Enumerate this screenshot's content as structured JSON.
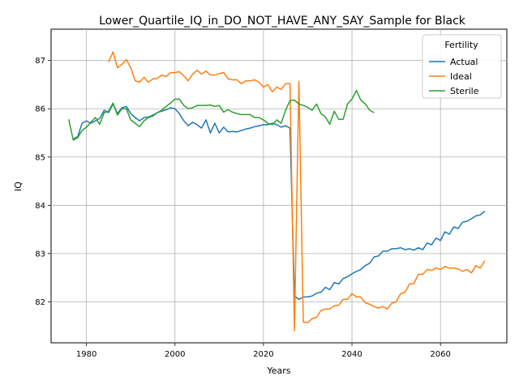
{
  "chart_data": {
    "type": "line",
    "title": "Lower_Quartile_IQ_in_DO_NOT_HAVE_ANY_SAY_Sample for Black",
    "xlabel": "Years",
    "ylabel": "IQ",
    "xlim": [
      1972,
      2075
    ],
    "ylim": [
      81.15,
      87.65
    ],
    "xticks": [
      1980,
      2000,
      2020,
      2040,
      2060
    ],
    "yticks": [
      82,
      83,
      84,
      85,
      86,
      87
    ],
    "grid": true,
    "legend": {
      "title": "Fertility",
      "position": "upper right"
    },
    "series": [
      {
        "name": "Actual",
        "color": "#1f77b4",
        "x": [
          1977,
          1978,
          1979,
          1980,
          1981,
          1982,
          1983,
          1984,
          1985,
          1986,
          1987,
          1988,
          1989,
          1990,
          1991,
          1992,
          1993,
          1994,
          1995,
          1996,
          1997,
          1998,
          1999,
          2000,
          2001,
          2002,
          2003,
          2004,
          2005,
          2006,
          2007,
          2008,
          2009,
          2010,
          2011,
          2012,
          2013,
          2014,
          2015,
          2016,
          2017,
          2018,
          2019,
          2020,
          2021,
          2022,
          2023,
          2024,
          2025,
          2026,
          2027,
          2028,
          2029,
          2030,
          2031,
          2032,
          2033,
          2034,
          2035,
          2036,
          2037,
          2038,
          2039,
          2040,
          2041,
          2042,
          2043,
          2044,
          2045,
          2046,
          2047,
          2048,
          2049,
          2050,
          2051,
          2052,
          2053,
          2054,
          2055,
          2056,
          2057,
          2058,
          2059,
          2060,
          2061,
          2062,
          2063,
          2064,
          2065,
          2066,
          2067,
          2068,
          2069,
          2070
        ],
        "y": [
          85.37,
          85.42,
          85.7,
          85.75,
          85.7,
          85.75,
          85.8,
          85.97,
          85.92,
          86.1,
          85.9,
          86.02,
          86.05,
          85.9,
          85.82,
          85.75,
          85.82,
          85.83,
          85.87,
          85.92,
          85.95,
          85.98,
          86.02,
          86.0,
          85.9,
          85.75,
          85.65,
          85.72,
          85.67,
          85.6,
          85.77,
          85.5,
          85.7,
          85.5,
          85.62,
          85.52,
          85.53,
          85.52,
          85.55,
          85.58,
          85.6,
          85.63,
          85.65,
          85.67,
          85.67,
          85.7,
          85.67,
          85.62,
          85.65,
          85.6,
          82.12,
          82.05,
          82.1,
          82.1,
          82.12,
          82.18,
          82.2,
          82.3,
          82.25,
          82.4,
          82.37,
          82.48,
          82.52,
          82.58,
          82.63,
          82.67,
          82.75,
          82.8,
          82.93,
          82.95,
          83.05,
          83.05,
          83.1,
          83.1,
          83.12,
          83.08,
          83.1,
          83.07,
          83.12,
          83.08,
          83.22,
          83.18,
          83.32,
          83.27,
          83.45,
          83.4,
          83.55,
          83.52,
          83.65,
          83.67,
          83.72,
          83.78,
          83.8,
          83.88
        ]
      },
      {
        "name": "Ideal",
        "color": "#ff7f0e",
        "x": [
          1985,
          1986,
          1987,
          1988,
          1989,
          1990,
          1991,
          1992,
          1993,
          1994,
          1995,
          1996,
          1997,
          1998,
          1999,
          2000,
          2001,
          2002,
          2003,
          2004,
          2005,
          2006,
          2007,
          2008,
          2009,
          2010,
          2011,
          2012,
          2013,
          2014,
          2015,
          2016,
          2017,
          2018,
          2019,
          2020,
          2021,
          2022,
          2023,
          2024,
          2025,
          2026,
          2027,
          2028,
          2029,
          2030,
          2031,
          2032,
          2033,
          2034,
          2035,
          2036,
          2037,
          2038,
          2039,
          2040,
          2041,
          2042,
          2043,
          2044,
          2045,
          2046,
          2047,
          2048,
          2049,
          2050,
          2051,
          2052,
          2053,
          2054,
          2055,
          2056,
          2057,
          2058,
          2059,
          2060,
          2061,
          2062,
          2063,
          2064,
          2065,
          2066,
          2067,
          2068,
          2069,
          2070
        ],
        "y": [
          86.97,
          87.18,
          86.85,
          86.92,
          87.02,
          86.85,
          86.58,
          86.55,
          86.65,
          86.55,
          86.62,
          86.63,
          86.7,
          86.67,
          86.75,
          86.75,
          86.77,
          86.68,
          86.58,
          86.72,
          86.8,
          86.72,
          86.78,
          86.7,
          86.7,
          86.73,
          86.75,
          86.62,
          86.6,
          86.6,
          86.52,
          86.58,
          86.58,
          86.6,
          86.55,
          86.45,
          86.5,
          86.35,
          86.45,
          86.4,
          86.52,
          86.52,
          81.4,
          86.57,
          81.58,
          81.57,
          81.65,
          81.68,
          81.82,
          81.85,
          81.85,
          81.92,
          81.93,
          82.05,
          82.05,
          82.17,
          82.1,
          82.1,
          81.98,
          81.95,
          81.9,
          81.87,
          81.9,
          81.85,
          81.97,
          82.0,
          82.17,
          82.2,
          82.37,
          82.38,
          82.57,
          82.57,
          82.67,
          82.65,
          82.7,
          82.67,
          82.73,
          82.7,
          82.7,
          82.68,
          82.63,
          82.67,
          82.6,
          82.75,
          82.7,
          82.85
        ]
      },
      {
        "name": "Sterile",
        "color": "#2ca02c",
        "x": [
          1976,
          1977,
          1978,
          1979,
          1980,
          1981,
          1982,
          1983,
          1984,
          1985,
          1986,
          1987,
          1988,
          1989,
          1990,
          1991,
          1992,
          1993,
          1994,
          1995,
          1996,
          1997,
          1998,
          1999,
          2000,
          2001,
          2002,
          2003,
          2004,
          2005,
          2006,
          2007,
          2008,
          2009,
          2010,
          2011,
          2012,
          2013,
          2014,
          2015,
          2016,
          2017,
          2018,
          2019,
          2020,
          2021,
          2022,
          2023,
          2024,
          2025,
          2026,
          2027,
          2028,
          2029,
          2030,
          2031,
          2032,
          2033,
          2034,
          2035,
          2036,
          2037,
          2038,
          2039,
          2040,
          2041,
          2042,
          2043,
          2044,
          2045
        ],
        "y": [
          85.78,
          85.35,
          85.4,
          85.55,
          85.62,
          85.72,
          85.82,
          85.68,
          85.92,
          85.95,
          86.12,
          85.87,
          86.0,
          86.0,
          85.77,
          85.7,
          85.63,
          85.75,
          85.82,
          85.85,
          85.92,
          85.97,
          86.05,
          86.12,
          86.2,
          86.2,
          86.07,
          86.0,
          86.02,
          86.07,
          86.07,
          86.07,
          86.08,
          86.05,
          86.07,
          85.93,
          85.98,
          85.93,
          85.9,
          85.88,
          85.88,
          85.88,
          85.82,
          85.82,
          85.77,
          85.7,
          85.67,
          85.77,
          85.7,
          85.97,
          86.17,
          86.18,
          86.1,
          86.07,
          86.03,
          85.97,
          86.1,
          85.9,
          85.83,
          85.68,
          85.95,
          85.78,
          85.78,
          86.1,
          86.2,
          86.38,
          86.18,
          86.1,
          85.97,
          85.92
        ]
      }
    ]
  }
}
